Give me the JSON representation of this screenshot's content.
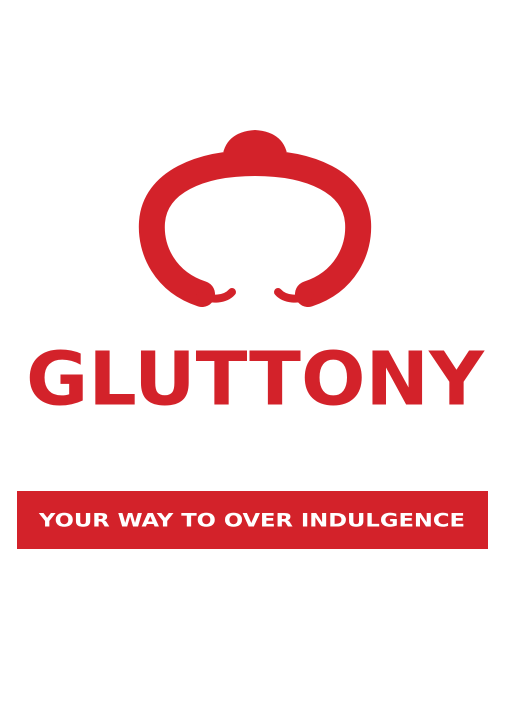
{
  "logo": {
    "name": "GLUTTONY",
    "tagline": "YOUR WAY TO OVER INDULGENCE"
  }
}
